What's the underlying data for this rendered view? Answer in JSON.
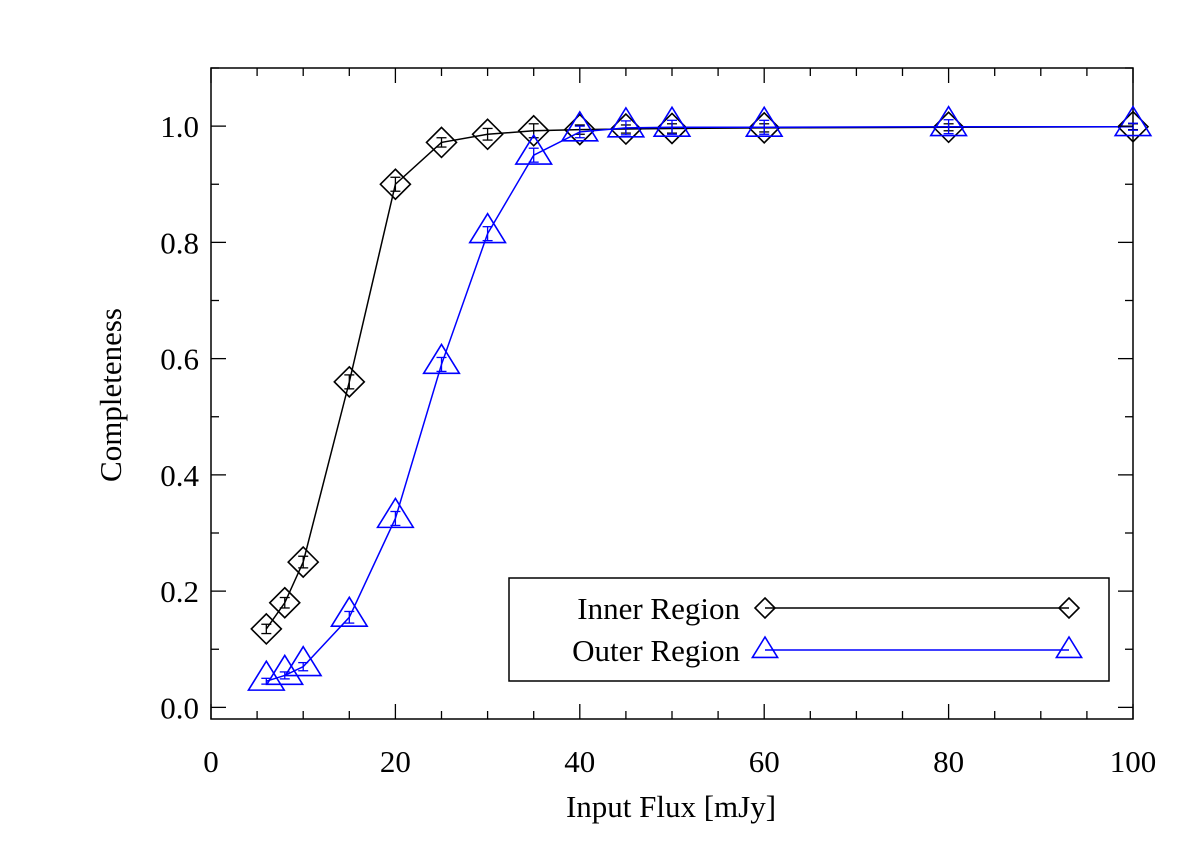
{
  "chart_data": {
    "type": "line",
    "title": "",
    "xlabel": "Input Flux [mJy]",
    "ylabel": "Completeness",
    "xlim": [
      0,
      100
    ],
    "ylim": [
      -0.02,
      1.1
    ],
    "xticks": [
      0,
      20,
      40,
      60,
      80,
      100
    ],
    "xtick_labels": [
      "0",
      "20",
      "40",
      "60",
      "80",
      "100"
    ],
    "yticks": [
      0.0,
      0.2,
      0.4,
      0.6,
      0.8,
      1.0
    ],
    "ytick_labels": [
      "0.0",
      "0.2",
      "0.4",
      "0.6",
      "0.8",
      "1.0"
    ],
    "grid": false,
    "legend_position": "bottom-right",
    "series": [
      {
        "name": "Inner Region",
        "color": "#000000",
        "marker": "diamond",
        "x": [
          6,
          8,
          10,
          15,
          20,
          25,
          30,
          35,
          40,
          45,
          50,
          60,
          80,
          100
        ],
        "y": [
          0.135,
          0.18,
          0.25,
          0.56,
          0.9,
          0.972,
          0.986,
          0.992,
          0.994,
          0.995,
          0.996,
          0.997,
          0.998,
          0.999
        ],
        "err": [
          0.008,
          0.009,
          0.01,
          0.012,
          0.012,
          0.008,
          0.01,
          0.012,
          0.008,
          0.007,
          0.008,
          0.007,
          0.006,
          0.005
        ]
      },
      {
        "name": "Outer Region",
        "color": "#0000ff",
        "marker": "triangle",
        "x": [
          6,
          8,
          10,
          15,
          20,
          25,
          30,
          35,
          40,
          45,
          50,
          60,
          80,
          100
        ],
        "y": [
          0.045,
          0.055,
          0.07,
          0.155,
          0.325,
          0.59,
          0.815,
          0.95,
          0.99,
          0.997,
          0.998,
          0.998,
          0.999,
          0.999
        ],
        "err": [
          0.005,
          0.006,
          0.007,
          0.01,
          0.012,
          0.012,
          0.012,
          0.012,
          0.01,
          0.012,
          0.012,
          0.012,
          0.012,
          0.006
        ]
      }
    ]
  }
}
